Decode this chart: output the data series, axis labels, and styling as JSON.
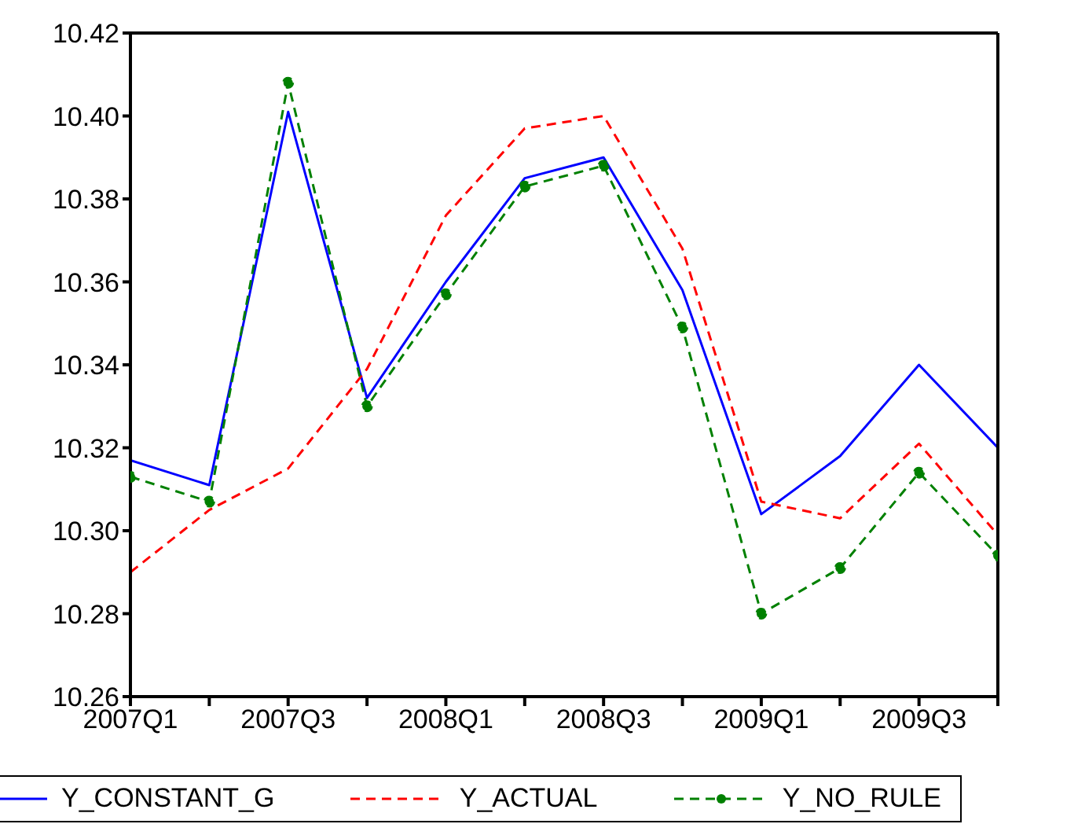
{
  "chart_data": {
    "type": "line",
    "categories": [
      "2007Q1",
      null,
      "2007Q3",
      null,
      "2008Q1",
      null,
      "2008Q3",
      null,
      "2009Q1",
      null,
      "2009Q3",
      null
    ],
    "series": [
      {
        "name": "Y_CONSTANT_G",
        "color": "#0000ff",
        "line_style": "solid",
        "marker": "none",
        "values": [
          10.317,
          10.311,
          10.401,
          10.332,
          10.36,
          10.385,
          10.39,
          10.358,
          10.304,
          10.318,
          10.34,
          10.32
        ]
      },
      {
        "name": "Y_ACTUAL",
        "color": "#ff0000",
        "line_style": "dashed",
        "marker": "none",
        "values": [
          10.29,
          10.305,
          10.315,
          10.339,
          10.376,
          10.397,
          10.4,
          10.368,
          10.307,
          10.303,
          10.321,
          10.299
        ]
      },
      {
        "name": "Y_NO_RULE",
        "color": "#008000",
        "line_style": "dashed",
        "marker": "circle",
        "values": [
          10.313,
          10.307,
          10.408,
          10.33,
          10.357,
          10.383,
          10.388,
          10.349,
          10.28,
          10.291,
          10.314,
          10.294
        ]
      }
    ],
    "ylim": [
      10.26,
      10.42
    ],
    "yticks": [
      10.26,
      10.28,
      {
        "value": 10.3,
        "label": "10.30"
      },
      10.32,
      10.34,
      10.36,
      10.38,
      {
        "value": 10.4,
        "label": "10.40"
      },
      10.42
    ],
    "grid": false,
    "legend": "bottom"
  }
}
